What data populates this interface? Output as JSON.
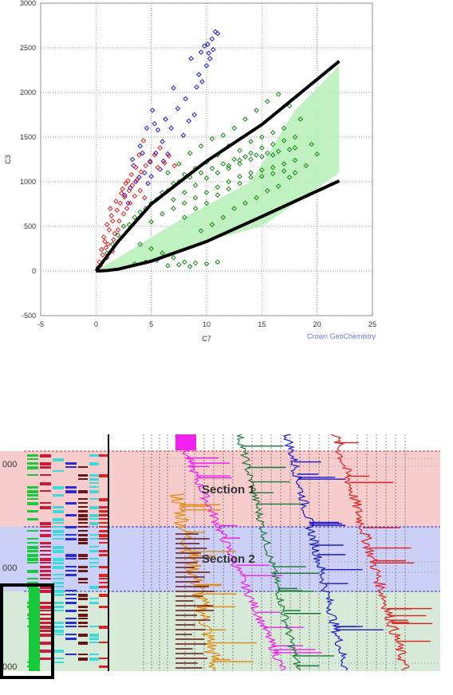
{
  "chart_data": [
    {
      "type": "scatter",
      "title": "",
      "xlabel": "C7",
      "ylabel": "C3",
      "xlim": [
        -5,
        25
      ],
      "ylim": [
        -500,
        3000
      ],
      "xticks": [
        -5,
        0,
        5,
        10,
        15,
        20,
        25
      ],
      "yticks": [
        -500,
        0,
        500,
        1000,
        1500,
        2000,
        2500,
        3000
      ],
      "grid": true,
      "credit": "Crown GeoChemistry",
      "series": [
        {
          "color": "#1f1fcf",
          "marker": "diamond-open",
          "values": [
            [
              3.4,
              1180
            ],
            [
              4,
              1400
            ],
            [
              4.6,
              1600
            ],
            [
              5.1,
              1800
            ],
            [
              5.6,
              1580
            ],
            [
              4.2,
              1320
            ],
            [
              6.1,
              1230
            ],
            [
              6.8,
              1600
            ],
            [
              7.4,
              1820
            ],
            [
              8.1,
              1930
            ],
            [
              8.6,
              2380
            ],
            [
              8.9,
              1750
            ],
            [
              9.3,
              2200
            ],
            [
              9.6,
              2120
            ],
            [
              10,
              2300
            ],
            [
              10.2,
              2440
            ],
            [
              10.5,
              2600
            ],
            [
              10.8,
              2680
            ],
            [
              10.6,
              2480
            ],
            [
              11,
              2660
            ],
            [
              9.8,
              2520
            ],
            [
              10.3,
              2380
            ],
            [
              7.9,
              1520
            ],
            [
              6.5,
              1310
            ],
            [
              5.8,
              1140
            ],
            [
              3.9,
              1050
            ],
            [
              3.1,
              930
            ],
            [
              2.6,
              850
            ],
            [
              5.3,
              1650
            ],
            [
              4.7,
              980
            ],
            [
              3.6,
              1000
            ],
            [
              4.4,
              1100
            ],
            [
              5,
              1060
            ],
            [
              2.9,
              760
            ],
            [
              6.3,
              1700
            ],
            [
              7,
              2050
            ],
            [
              9.1,
              2060
            ],
            [
              8.4,
              1680
            ],
            [
              6,
              1450
            ],
            [
              3.3,
              1250
            ],
            [
              4.9,
              1220
            ],
            [
              5.4,
              1320
            ],
            [
              10.1,
              2540
            ],
            [
              9.5,
              2450
            ]
          ]
        },
        {
          "color": "#e02020",
          "marker": "diamond-open",
          "values": [
            [
              0.3,
              100
            ],
            [
              0.5,
              240
            ],
            [
              0.8,
              330
            ],
            [
              1.2,
              460
            ],
            [
              1.5,
              560
            ],
            [
              1.9,
              680
            ],
            [
              2.2,
              760
            ],
            [
              2.6,
              830
            ],
            [
              3,
              900
            ],
            [
              3.3,
              960
            ],
            [
              3.7,
              1020
            ],
            [
              4.1,
              1110
            ],
            [
              4.5,
              1180
            ],
            [
              4.9,
              1230
            ],
            [
              5.3,
              1300
            ],
            [
              5.8,
              1380
            ],
            [
              6.2,
              1210
            ],
            [
              1,
              520
            ],
            [
              1.4,
              620
            ],
            [
              1.7,
              420
            ],
            [
              2.1,
              560
            ],
            [
              2.4,
              920
            ],
            [
              2.8,
              700
            ],
            [
              3.1,
              760
            ],
            [
              3.5,
              840
            ],
            [
              0.6,
              180
            ],
            [
              0.9,
              260
            ],
            [
              1.1,
              300
            ],
            [
              1.6,
              350
            ],
            [
              2,
              460
            ],
            [
              2.5,
              640
            ],
            [
              2.9,
              1010
            ],
            [
              3.9,
              1300
            ],
            [
              4.3,
              1460
            ],
            [
              5.6,
              1160
            ],
            [
              6.6,
              1290
            ],
            [
              7.1,
              1180
            ],
            [
              0.4,
              60
            ],
            [
              0.7,
              380
            ],
            [
              1.3,
              700
            ],
            [
              1.8,
              780
            ],
            [
              2.3,
              870
            ],
            [
              2.7,
              980
            ],
            [
              3.2,
              1080
            ],
            [
              3.6,
              1160
            ],
            [
              4,
              900
            ],
            [
              4.4,
              820
            ],
            [
              0.2,
              40
            ],
            [
              1,
              150
            ],
            [
              1.5,
              220
            ]
          ]
        },
        {
          "color": "#138a13",
          "marker": "diamond-open",
          "values": [
            [
              2.5,
              500
            ],
            [
              3.5,
              600
            ],
            [
              4.5,
              700
            ],
            [
              5.5,
              800
            ],
            [
              6.5,
              900
            ],
            [
              7.5,
              1000
            ],
            [
              8.5,
              1050
            ],
            [
              9.5,
              1100
            ],
            [
              10.5,
              1150
            ],
            [
              11.5,
              1200
            ],
            [
              12.5,
              1250
            ],
            [
              13.5,
              1280
            ],
            [
              14.5,
              1300
            ],
            [
              15.5,
              1320
            ],
            [
              16.5,
              1340
            ],
            [
              17.5,
              1360
            ],
            [
              18,
              1380
            ],
            [
              5,
              550
            ],
            [
              6,
              640
            ],
            [
              7,
              700
            ],
            [
              8,
              760
            ],
            [
              9,
              820
            ],
            [
              10,
              880
            ],
            [
              11,
              940
            ],
            [
              12,
              1000
            ],
            [
              13,
              1060
            ],
            [
              14,
              1100
            ],
            [
              15,
              1130
            ],
            [
              16,
              1160
            ],
            [
              17,
              1200
            ],
            [
              6.5,
              1100
            ],
            [
              7.5,
              1200
            ],
            [
              8.5,
              1320
            ],
            [
              9.5,
              1400
            ],
            [
              10.5,
              1480
            ],
            [
              11.5,
              1520
            ],
            [
              12.5,
              1600
            ],
            [
              13.5,
              1700
            ],
            [
              14.5,
              1800
            ],
            [
              15.5,
              1900
            ],
            [
              16.5,
              1980
            ],
            [
              17.5,
              1850
            ],
            [
              18.5,
              1700
            ],
            [
              19.5,
              1420
            ],
            [
              20,
              1310
            ],
            [
              12,
              1400
            ],
            [
              13,
              1350
            ],
            [
              14,
              1450
            ],
            [
              15,
              1500
            ],
            [
              16,
              1550
            ],
            [
              17,
              1600
            ],
            [
              4,
              300
            ],
            [
              5,
              250
            ],
            [
              6,
              200
            ],
            [
              7,
              150
            ],
            [
              8,
              100
            ],
            [
              9,
              90
            ],
            [
              10,
              80
            ],
            [
              11,
              100
            ],
            [
              6.5,
              60
            ],
            [
              7.5,
              70
            ],
            [
              8.5,
              50
            ],
            [
              5.5,
              120
            ],
            [
              4.5,
              100
            ],
            [
              3.5,
              80
            ],
            [
              9.5,
              450
            ],
            [
              10.5,
              520
            ],
            [
              11.5,
              600
            ],
            [
              12.5,
              700
            ],
            [
              13.5,
              760
            ],
            [
              14.5,
              820
            ],
            [
              15.5,
              900
            ],
            [
              16.5,
              950
            ],
            [
              17.5,
              1050
            ],
            [
              18,
              1100
            ],
            [
              12,
              1150
            ],
            [
              13,
              1200
            ],
            [
              14,
              1250
            ],
            [
              15,
              1280
            ],
            [
              16,
              1300
            ],
            [
              11,
              1300
            ],
            [
              10,
              1220
            ],
            [
              9,
              1150
            ],
            [
              8,
              1080
            ],
            [
              7,
              980
            ],
            [
              6,
              880
            ],
            [
              5,
              760
            ],
            [
              4,
              660
            ],
            [
              3,
              520
            ],
            [
              2,
              400
            ],
            [
              1.5,
              300
            ],
            [
              1,
              200
            ],
            [
              8,
              880
            ],
            [
              9,
              960
            ],
            [
              10,
              1040
            ],
            [
              11,
              1100
            ],
            [
              12,
              1180
            ],
            [
              13,
              1240
            ],
            [
              14,
              1320
            ],
            [
              15,
              1380
            ],
            [
              16,
              1420
            ],
            [
              17,
              1460
            ],
            [
              18,
              1500
            ],
            [
              7,
              800
            ],
            [
              8,
              600
            ],
            [
              9,
              700
            ],
            [
              10,
              760
            ],
            [
              11,
              850
            ],
            [
              12,
              920
            ],
            [
              13,
              980
            ],
            [
              14,
              1050
            ],
            [
              15,
              1060
            ],
            [
              16,
              1090
            ],
            [
              17,
              1120
            ],
            [
              18,
              1240
            ],
            [
              19,
              1180
            ]
          ]
        }
      ],
      "envelope_fill": [
        [
          0,
          0
        ],
        [
          8,
          600
        ],
        [
          14,
          1000
        ],
        [
          18,
          1800
        ],
        [
          22,
          2300
        ],
        [
          22,
          1100
        ],
        [
          15,
          500
        ],
        [
          9,
          300
        ],
        [
          4,
          80
        ],
        [
          1,
          0
        ]
      ],
      "envelope_upper": [
        [
          0,
          0
        ],
        [
          2,
          330
        ],
        [
          5,
          750
        ],
        [
          10,
          1230
        ],
        [
          15,
          1640
        ],
        [
          22,
          2350
        ]
      ],
      "envelope_lower": [
        [
          0,
          0
        ],
        [
          1,
          5
        ],
        [
          2,
          20
        ],
        [
          5,
          110
        ],
        [
          10,
          330
        ],
        [
          15,
          610
        ],
        [
          22,
          1010
        ]
      ],
      "envelope_hint_color": "#b9f0b9"
    },
    {
      "type": "well-log",
      "depth_labels": [
        "000",
        "000",
        "000"
      ],
      "sections": [
        {
          "label": "Section 1",
          "color": "#f6cccc",
          "border_color": "#d02a2a"
        },
        {
          "label": "Section 2",
          "color": "#cdd0f6",
          "border_color": "#2a2ad0"
        },
        {
          "label": "",
          "color": "#d7ead7",
          "border_color": "#2a2ad0"
        }
      ],
      "curve_colors": [
        "#ee21ee",
        "#1a7a3a",
        "#1a1ac8",
        "#e02020",
        "#e08a10"
      ],
      "track_colors": [
        "#19c93c",
        "#cc1a3a",
        "#6a1414",
        "#2a2ad6",
        "#3fd9d9",
        "#e02020"
      ]
    }
  ]
}
